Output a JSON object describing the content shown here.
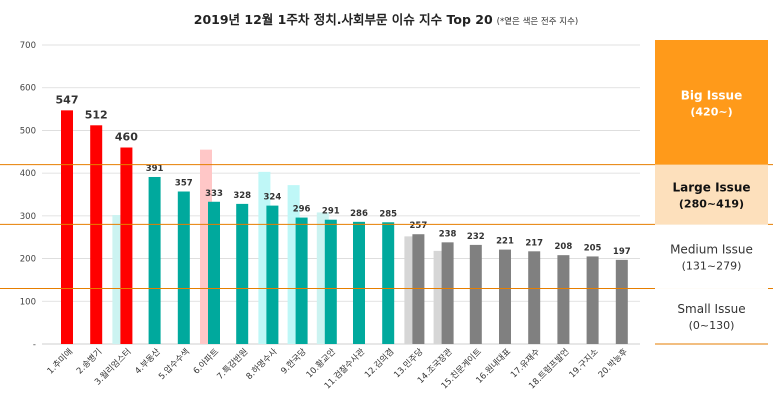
{
  "chart_data": {
    "type": "bar",
    "title": "2019년 12월 1주차 정치.사회부문 이슈 지수 Top 20",
    "title_note": "(*옅은 색은 전주 지수)",
    "ylim": [
      0,
      700
    ],
    "yticks": [
      "-",
      "100",
      "200",
      "300",
      "400",
      "500",
      "600",
      "700"
    ],
    "categories": [
      "1.추미애",
      "2.송병기",
      "3.월리엄스터",
      "4.부동산",
      "5.압수수색",
      "6.아파트",
      "7.특감반원",
      "8.하명수사",
      "9.한국당",
      "10.황교안",
      "11.검찰수사관",
      "12.김의겸",
      "13.민주당",
      "14.조국장관",
      "15.친문게이트",
      "16.원내대표",
      "17.유재수",
      "18.트럼프발언",
      "19.구지소",
      "20.박능후"
    ],
    "series": [
      {
        "values": [
          547,
          512,
          460,
          391,
          357,
          333,
          328,
          324,
          296,
          291,
          286,
          285,
          257,
          238,
          232,
          221,
          217,
          208,
          205,
          197
        ]
      },
      {
        "values": [
          null,
          null,
          302,
          null,
          null,
          455,
          null,
          403,
          372,
          308,
          null,
          null,
          252,
          218,
          null,
          null,
          null,
          null,
          null,
          null
        ]
      }
    ],
    "value_labels": [
      "547",
      "512",
      "460",
      "391",
      "357",
      "333",
      "328",
      "324",
      "296",
      "291",
      "286",
      "285",
      "257",
      "238",
      "232",
      "221",
      "217",
      "208",
      "205",
      "197"
    ],
    "bar_colors": [
      "#ff0000",
      "#ff0000",
      "#ff0000",
      "#00a99d",
      "#00a99d",
      "#00a99d",
      "#00a99d",
      "#00a99d",
      "#00a99d",
      "#00a99d",
      "#00a99d",
      "#00a99d",
      "#808080",
      "#808080",
      "#808080",
      "#808080",
      "#808080",
      "#808080",
      "#808080",
      "#808080"
    ],
    "prev_colors": [
      "#ffc7c7",
      "#ffc7c7",
      "#ccf3f1",
      "#ccf3f1",
      "#ccf3f1",
      "#ffc7c7",
      "#ccf3f1",
      "#bff7f7",
      "#bff7f7",
      "#ccf3f1",
      "#ccf3f1",
      "#ccf3f1",
      "#d6d6d6",
      "#d6d6d6",
      "#d6d6d6",
      "#d6d6d6",
      "#d6d6d6",
      "#d6d6d6",
      "#d6d6d6",
      "#d6d6d6"
    ],
    "thresholds": [
      420,
      280,
      130
    ],
    "threshold_color": "#e67e00",
    "legend": [
      {
        "title": "Big Issue",
        "range": "(420~)",
        "bg": "#ff9a1a",
        "text_color": "#ffffff",
        "bold": true
      },
      {
        "title": "Large Issue",
        "range": "(280~419)",
        "bg": "#fde0bc",
        "text_color": "#111111",
        "bold": true
      },
      {
        "title": "Medium Issue",
        "range": "(131~279)",
        "bg": "#ffffff",
        "text_color": "#333333",
        "bold": false
      },
      {
        "title": "Small Issue",
        "range": "(0~130)",
        "bg": "#ffffff",
        "text_color": "#333333",
        "bold": false
      }
    ]
  }
}
